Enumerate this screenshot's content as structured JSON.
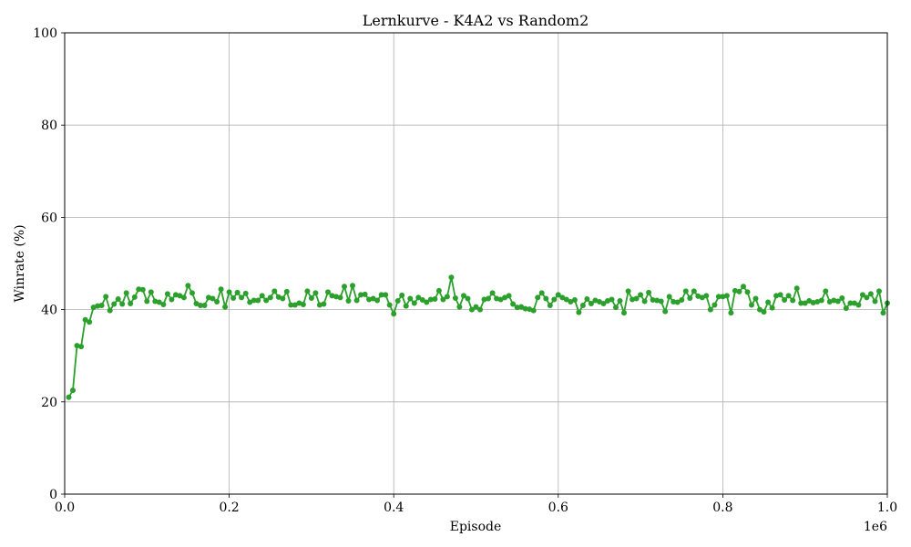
{
  "chart_data": {
    "type": "line",
    "title": "Lernkurve - K4A2 vs Random2",
    "xlabel": "Episode",
    "ylabel": "Winrate (%)",
    "x_scale_label": "1e6",
    "xlim": [
      0,
      1.0
    ],
    "ylim": [
      0,
      100
    ],
    "grid": true,
    "x_ticks": [
      0.0,
      0.2,
      0.4,
      0.6,
      0.8,
      1.0
    ],
    "x_tick_labels": [
      "0.0",
      "0.2",
      "0.4",
      "0.6",
      "0.8",
      "1.0"
    ],
    "y_ticks": [
      0,
      20,
      40,
      60,
      80,
      100
    ],
    "y_tick_labels": [
      "0",
      "20",
      "40",
      "60",
      "80",
      "100"
    ],
    "line_color": "#2ca02c",
    "series": [
      {
        "name": "Winrate",
        "x": [
          0.005,
          0.01,
          0.015,
          0.02,
          0.025,
          0.03,
          0.035,
          0.04,
          0.045,
          0.05,
          0.055,
          0.06,
          0.065,
          0.07,
          0.075,
          0.08,
          0.085,
          0.09,
          0.095,
          0.1,
          0.105,
          0.11,
          0.115,
          0.12,
          0.125,
          0.13,
          0.135,
          0.14,
          0.145,
          0.15,
          0.155,
          0.16,
          0.165,
          0.17,
          0.175,
          0.18,
          0.185,
          0.19,
          0.195,
          0.2,
          0.205,
          0.21,
          0.215,
          0.22,
          0.225,
          0.23,
          0.235,
          0.24,
          0.245,
          0.25,
          0.255,
          0.26,
          0.265,
          0.27,
          0.275,
          0.28,
          0.285,
          0.29,
          0.295,
          0.3,
          0.305,
          0.31,
          0.315,
          0.32,
          0.325,
          0.33,
          0.335,
          0.34,
          0.345,
          0.35,
          0.355,
          0.36,
          0.365,
          0.37,
          0.375,
          0.38,
          0.385,
          0.39,
          0.395,
          0.4,
          0.405,
          0.41,
          0.415,
          0.42,
          0.425,
          0.43,
          0.435,
          0.44,
          0.445,
          0.45,
          0.455,
          0.46,
          0.465,
          0.47,
          0.475,
          0.48,
          0.485,
          0.49,
          0.495,
          0.5,
          0.505,
          0.51,
          0.515,
          0.52,
          0.525,
          0.53,
          0.535,
          0.54,
          0.545,
          0.55,
          0.555,
          0.56,
          0.565,
          0.57,
          0.575,
          0.58,
          0.585,
          0.59,
          0.595,
          0.6,
          0.605,
          0.61,
          0.615,
          0.62,
          0.625,
          0.63,
          0.635,
          0.64,
          0.645,
          0.65,
          0.655,
          0.66,
          0.665,
          0.67,
          0.675,
          0.68,
          0.685,
          0.69,
          0.695,
          0.7,
          0.705,
          0.71,
          0.715,
          0.72,
          0.725,
          0.73,
          0.735,
          0.74,
          0.745,
          0.75,
          0.755,
          0.76,
          0.765,
          0.77,
          0.775,
          0.78,
          0.785,
          0.79,
          0.795,
          0.8,
          0.805,
          0.81,
          0.815,
          0.82,
          0.825,
          0.83,
          0.835,
          0.84,
          0.845,
          0.85,
          0.855,
          0.86,
          0.865,
          0.87,
          0.875,
          0.88,
          0.885,
          0.89,
          0.895,
          0.9,
          0.905,
          0.91,
          0.915,
          0.92,
          0.925,
          0.93,
          0.935,
          0.94,
          0.945,
          0.95,
          0.955,
          0.96,
          0.965,
          0.97,
          0.975,
          0.98,
          0.985,
          0.99,
          0.995,
          1.0
        ],
        "y": [
          21.0,
          22.5,
          32.2,
          32.0,
          37.8,
          37.3,
          40.5,
          40.8,
          40.9,
          42.8,
          39.8,
          41.2,
          42.3,
          41.2,
          43.6,
          41.3,
          42.7,
          44.4,
          44.3,
          41.8,
          43.8,
          41.8,
          41.6,
          41.1,
          43.4,
          42.2,
          43.2,
          43.0,
          42.6,
          45.2,
          43.6,
          41.3,
          40.9,
          40.9,
          42.6,
          42.4,
          41.7,
          44.4,
          40.6,
          43.8,
          42.5,
          43.7,
          42.6,
          43.5,
          41.6,
          42.0,
          42.0,
          43.0,
          42.0,
          42.6,
          44.0,
          42.7,
          42.4,
          43.9,
          41.0,
          41.0,
          41.4,
          41.1,
          44.0,
          42.5,
          43.6,
          41.0,
          41.2,
          43.8,
          43.0,
          42.8,
          42.6,
          45.0,
          41.9,
          45.2,
          42.0,
          43.2,
          43.3,
          42.2,
          42.4,
          42.0,
          43.2,
          43.2,
          41.0,
          39.1,
          41.9,
          43.1,
          40.8,
          42.4,
          41.4,
          42.6,
          42.1,
          41.6,
          42.2,
          42.3,
          44.1,
          42.2,
          42.8,
          47.0,
          42.5,
          40.6,
          43.0,
          42.4,
          40.0,
          40.6,
          40.0,
          42.2,
          42.4,
          43.6,
          42.4,
          42.2,
          42.6,
          43.0,
          41.2,
          40.5,
          40.6,
          40.2,
          40.1,
          39.8,
          42.6,
          43.6,
          42.4,
          40.9,
          42.2,
          43.2,
          42.6,
          42.2,
          41.7,
          42.1,
          39.4,
          40.9,
          42.3,
          41.3,
          42.0,
          41.7,
          41.3,
          41.9,
          42.2,
          40.5,
          41.9,
          39.3,
          44.0,
          42.2,
          42.4,
          43.2,
          41.8,
          43.7,
          42.1,
          42.0,
          41.8,
          39.6,
          42.8,
          41.7,
          41.6,
          42.1,
          44.0,
          42.5,
          44.0,
          42.9,
          42.6,
          43.0,
          40.0,
          41.0,
          42.8,
          42.8,
          43.0,
          39.3,
          44.1,
          43.9,
          45.0,
          43.8,
          41.0,
          42.4,
          40.0,
          39.5,
          41.6,
          40.4,
          43.0,
          43.2,
          42.1,
          43.0,
          42.0,
          44.6,
          41.4,
          41.4,
          41.9,
          41.5,
          41.7,
          42.0,
          44.0,
          41.7,
          42.0,
          41.8,
          42.5,
          40.3,
          41.4,
          41.4,
          41.0,
          43.2,
          42.6,
          43.4,
          41.8,
          44.0,
          39.3,
          41.4
        ]
      }
    ]
  }
}
